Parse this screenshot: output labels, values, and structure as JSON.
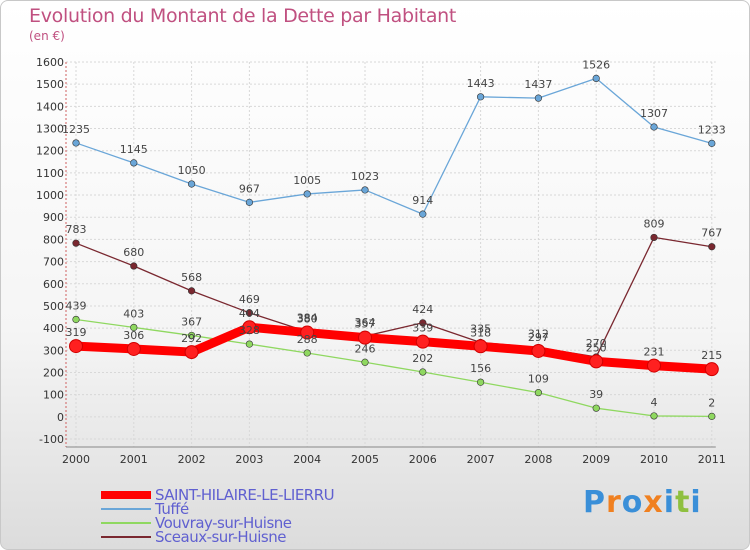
{
  "title": "Evolution du Montant de la Dette par Habitant",
  "subtitle": "(en €)",
  "brand": "Proxiti",
  "chart_data": {
    "type": "line",
    "title": "Evolution du Montant de la Dette par Habitant",
    "ylabel": "(en €)",
    "xlabel": "",
    "ylim": [
      -100,
      1600
    ],
    "yticks": [
      -100,
      0,
      100,
      200,
      300,
      400,
      500,
      600,
      700,
      800,
      900,
      1000,
      1100,
      1200,
      1300,
      1400,
      1500,
      1600
    ],
    "categories": [
      "2000",
      "2001",
      "2002",
      "2003",
      "2004",
      "2005",
      "2006",
      "2007",
      "2008",
      "2009",
      "2010",
      "2011"
    ],
    "grid": true,
    "legend": "bottom-left",
    "series": [
      {
        "name": "SAINT-HILAIRE-LE-LIERRU",
        "color": "#ff0000",
        "values": [
          319,
          306,
          292,
          404,
          380,
          357,
          339,
          318,
          297,
          250,
          231,
          215
        ]
      },
      {
        "name": "Tuffé",
        "color": "#6aa6d8",
        "values": [
          1235,
          1145,
          1050,
          967,
          1005,
          1023,
          914,
          1443,
          1437,
          1526,
          1307,
          1233
        ]
      },
      {
        "name": "Vouvray-sur-Huisne",
        "color": "#8fd860",
        "values": [
          439,
          403,
          367,
          328,
          288,
          246,
          202,
          156,
          109,
          39,
          4,
          2
        ]
      },
      {
        "name": "Sceaux-sur-Huisne",
        "color": "#7a2830",
        "values": [
          783,
          680,
          568,
          469,
          384,
          364,
          424,
          335,
          312,
          270,
          809,
          767
        ]
      }
    ]
  }
}
